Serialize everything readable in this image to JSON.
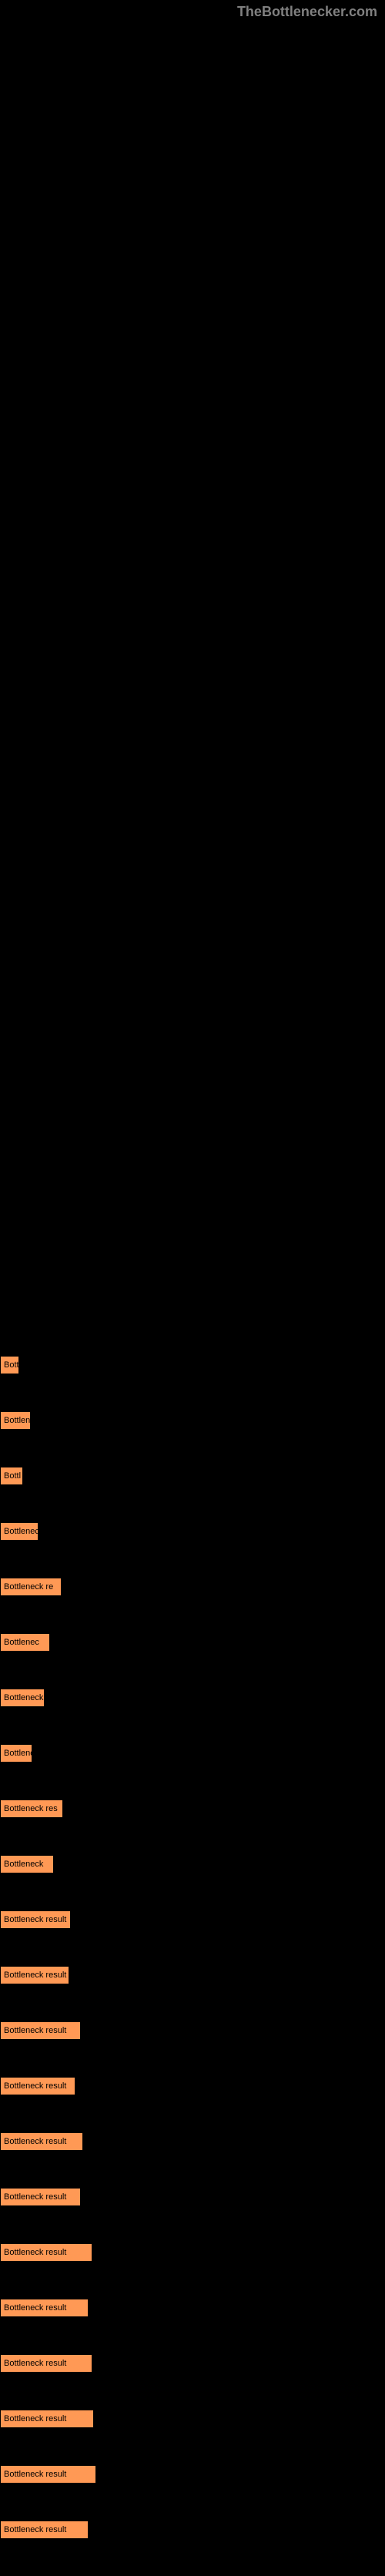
{
  "watermark": "TheBottlenecker.com",
  "chart": {
    "type": "bar",
    "orientation": "horizontal",
    "bar_color": "#ff9955",
    "bar_border_color": "#000000",
    "background_color": "#000000",
    "text_color": "#000000",
    "font_size": 11,
    "bars": [
      {
        "label": "Bott",
        "width": 25
      },
      {
        "label": "Bottlenec",
        "width": 40
      },
      {
        "label": "Bottl",
        "width": 30
      },
      {
        "label": "Bottleneck",
        "width": 50
      },
      {
        "label": "Bottleneck re",
        "width": 80
      },
      {
        "label": "Bottlenec",
        "width": 65
      },
      {
        "label": "Bottleneck",
        "width": 58
      },
      {
        "label": "Bottlene",
        "width": 42
      },
      {
        "label": "Bottleneck res",
        "width": 82
      },
      {
        "label": "Bottleneck",
        "width": 70
      },
      {
        "label": "Bottleneck result",
        "width": 92
      },
      {
        "label": "Bottleneck result",
        "width": 90
      },
      {
        "label": "Bottleneck result",
        "width": 105
      },
      {
        "label": "Bottleneck result",
        "width": 98
      },
      {
        "label": "Bottleneck result",
        "width": 108
      },
      {
        "label": "Bottleneck result",
        "width": 105
      },
      {
        "label": "Bottleneck result",
        "width": 120
      },
      {
        "label": "Bottleneck result",
        "width": 115
      },
      {
        "label": "Bottleneck result",
        "width": 120
      },
      {
        "label": "Bottleneck result",
        "width": 122
      },
      {
        "label": "Bottleneck result",
        "width": 125
      },
      {
        "label": "Bottleneck result",
        "width": 115
      }
    ]
  }
}
